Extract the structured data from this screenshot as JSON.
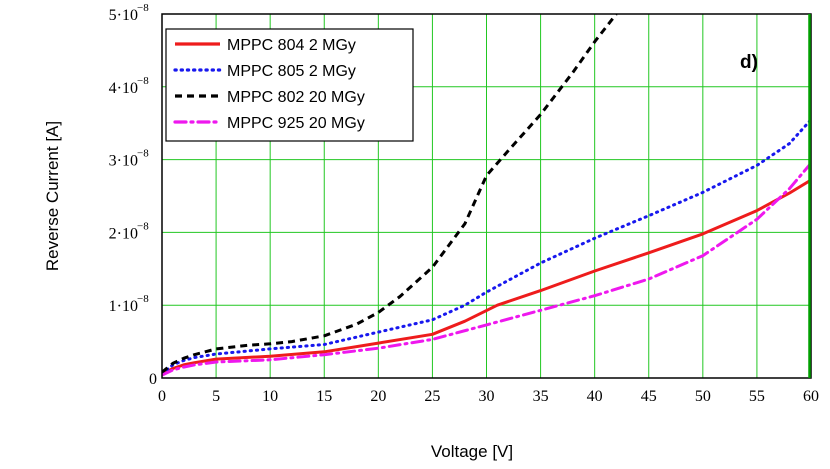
{
  "chart_data": {
    "type": "line",
    "title": "",
    "panel_label": "d)",
    "xlabel": "Voltage [V]",
    "ylabel": "Reverse Current [A]",
    "xlim": [
      0,
      60
    ],
    "ylim": [
      0,
      5e-08
    ],
    "grid": true,
    "legend_position": "top-left",
    "x_ticks": [
      0,
      5,
      10,
      15,
      20,
      25,
      30,
      35,
      40,
      45,
      50,
      55,
      60
    ],
    "x_tick_labels": [
      "0",
      "5",
      "10",
      "15",
      "20",
      "25",
      "30",
      "35",
      "40",
      "45",
      "50",
      "55",
      "60"
    ],
    "y_ticks": [
      {
        "value": 0,
        "mantissa": "0",
        "exponent": ""
      },
      {
        "value": 1e-08,
        "mantissa": "1·10",
        "exponent": "−8"
      },
      {
        "value": 2e-08,
        "mantissa": "2·10",
        "exponent": "−8"
      },
      {
        "value": 3e-08,
        "mantissa": "3·10",
        "exponent": "−8"
      },
      {
        "value": 4e-08,
        "mantissa": "4·10",
        "exponent": "−8"
      },
      {
        "value": 5e-08,
        "mantissa": "5·10",
        "exponent": "−8"
      }
    ],
    "series": [
      {
        "name": "MPPC 804 2 MGy",
        "color": "#ee1c1c",
        "style": "solid",
        "x": [
          0,
          1,
          2,
          3,
          5,
          10,
          15,
          20,
          25,
          28,
          31,
          35,
          40,
          45,
          50,
          55,
          58,
          60
        ],
        "y": [
          5e-10,
          1.3e-09,
          1.8e-09,
          2.1e-09,
          2.6e-09,
          3e-09,
          3.6e-09,
          4.8e-09,
          6e-09,
          7.8e-09,
          1e-08,
          1.2e-08,
          1.47e-08,
          1.72e-08,
          1.98e-08,
          2.3e-08,
          2.54e-08,
          2.72e-08
        ]
      },
      {
        "name": "MPPC 805 2 MGy",
        "color": "#1818ee",
        "style": "dotted",
        "x": [
          0,
          1,
          2,
          3,
          5,
          10,
          15,
          20,
          25,
          28,
          30,
          35,
          40,
          45,
          50,
          55,
          58,
          60
        ],
        "y": [
          6e-10,
          1.8e-09,
          2.4e-09,
          2.8e-09,
          3.3e-09,
          4e-09,
          4.6e-09,
          6.3e-09,
          8e-09,
          1e-08,
          1.18e-08,
          1.58e-08,
          1.92e-08,
          2.23e-08,
          2.55e-08,
          2.92e-08,
          3.22e-08,
          3.55e-08
        ]
      },
      {
        "name": "MPPC 802 20 MGy",
        "color": "#000000",
        "style": "dashed",
        "x": [
          0,
          1,
          2,
          3,
          5,
          8,
          10,
          12,
          15,
          18,
          20,
          22,
          25,
          28,
          30,
          32,
          35,
          38,
          40,
          42
        ],
        "y": [
          8e-10,
          2e-09,
          2.7e-09,
          3.2e-09,
          4e-09,
          4.5e-09,
          4.7e-09,
          5e-09,
          5.8e-09,
          7.4e-09,
          9e-09,
          1.12e-08,
          1.52e-08,
          2.12e-08,
          2.78e-08,
          3.12e-08,
          3.62e-08,
          4.2e-08,
          4.62e-08,
          5e-08
        ]
      },
      {
        "name": "MPPC 925 20 MGy",
        "color": "#ee18ee",
        "style": "dashdot",
        "x": [
          0,
          1,
          2,
          3,
          5,
          10,
          15,
          20,
          25,
          30,
          35,
          40,
          45,
          50,
          55,
          58,
          60
        ],
        "y": [
          4e-10,
          1.1e-09,
          1.5e-09,
          1.8e-09,
          2.2e-09,
          2.5e-09,
          3.2e-09,
          4.1e-09,
          5.3e-09,
          7.3e-09,
          9.3e-09,
          1.13e-08,
          1.36e-08,
          1.68e-08,
          2.18e-08,
          2.6e-08,
          2.95e-08
        ]
      }
    ]
  }
}
